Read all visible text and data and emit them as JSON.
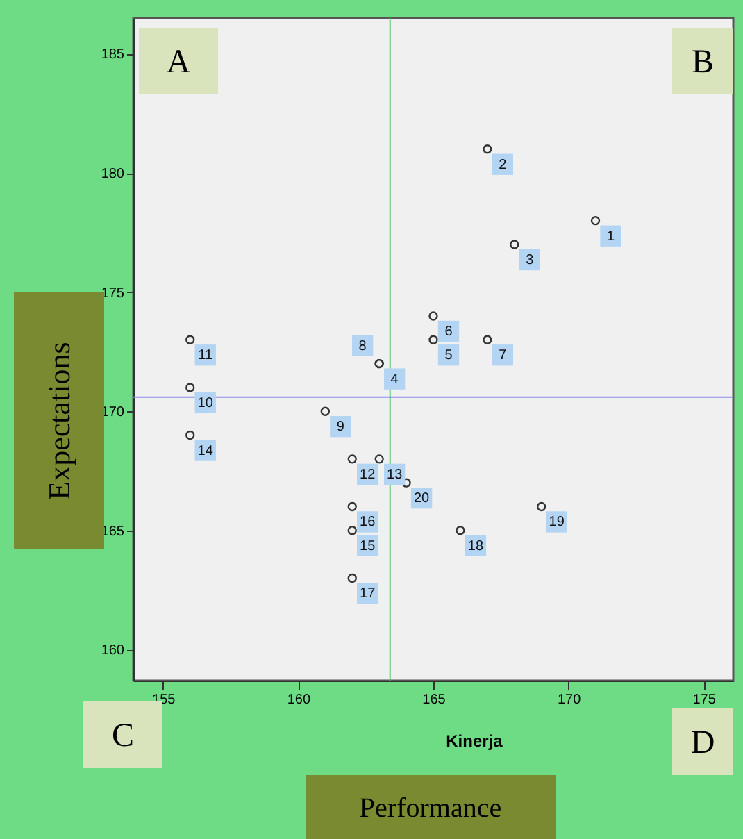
{
  "chart_data": {
    "type": "scatter",
    "xlabel": "Kinerja",
    "ylabel": "Expectations",
    "x": [
      171,
      167,
      168,
      163,
      165,
      165,
      167,
      163,
      161,
      156,
      156,
      162,
      163,
      156,
      162,
      162,
      162,
      166,
      169,
      164
    ],
    "series": [
      {
        "color": "#333333",
        "values": [
          178,
          181,
          177,
          172,
          173,
          174,
          173,
          172,
          170,
          171,
          173,
          168,
          168,
          169,
          165,
          166,
          163,
          165,
          166,
          167
        ]
      }
    ],
    "marker": "circle",
    "xlim": [
      153.9,
      176.1
    ],
    "ylim": [
      158.7,
      186.5
    ],
    "xticks": [
      155,
      160,
      165,
      170,
      175
    ],
    "yticks": [
      160,
      165,
      170,
      175,
      180,
      185
    ],
    "grid": false,
    "ref_lines": [
      {
        "axis": "x",
        "value": 163.4,
        "color": "#5ccd6e"
      },
      {
        "axis": "y",
        "value": 170.6,
        "color": "#8c8cf0"
      }
    ],
    "annotations": [
      "A",
      "B",
      "C",
      "D",
      "Performance",
      {
        "text": "1",
        "x": 171,
        "y": 178
      },
      {
        "text": "2",
        "x": 167,
        "y": 181
      },
      {
        "text": "3",
        "x": 168,
        "y": 177
      },
      {
        "text": "4",
        "x": 163,
        "y": 172
      },
      {
        "text": "5",
        "x": 165,
        "y": 173
      },
      {
        "text": "6",
        "x": 165,
        "y": 174
      },
      {
        "text": "7",
        "x": 167,
        "y": 173
      },
      {
        "text": "8",
        "x": 163,
        "y": 172
      },
      {
        "text": "9",
        "x": 161,
        "y": 170
      },
      {
        "text": "10",
        "x": 156,
        "y": 171
      },
      {
        "text": "11",
        "x": 156,
        "y": 173
      },
      {
        "text": "12",
        "x": 162,
        "y": 168
      },
      {
        "text": "13",
        "x": 163,
        "y": 168
      },
      {
        "text": "14",
        "x": 156,
        "y": 169
      },
      {
        "text": "15",
        "x": 162,
        "y": 165
      },
      {
        "text": "16",
        "x": 162,
        "y": 166
      },
      {
        "text": "17",
        "x": 162,
        "y": 163
      },
      {
        "text": "18",
        "x": 166,
        "y": 165
      },
      {
        "text": "19",
        "x": 169,
        "y": 166
      },
      {
        "text": "20",
        "x": 164,
        "y": 167
      }
    ]
  }
}
